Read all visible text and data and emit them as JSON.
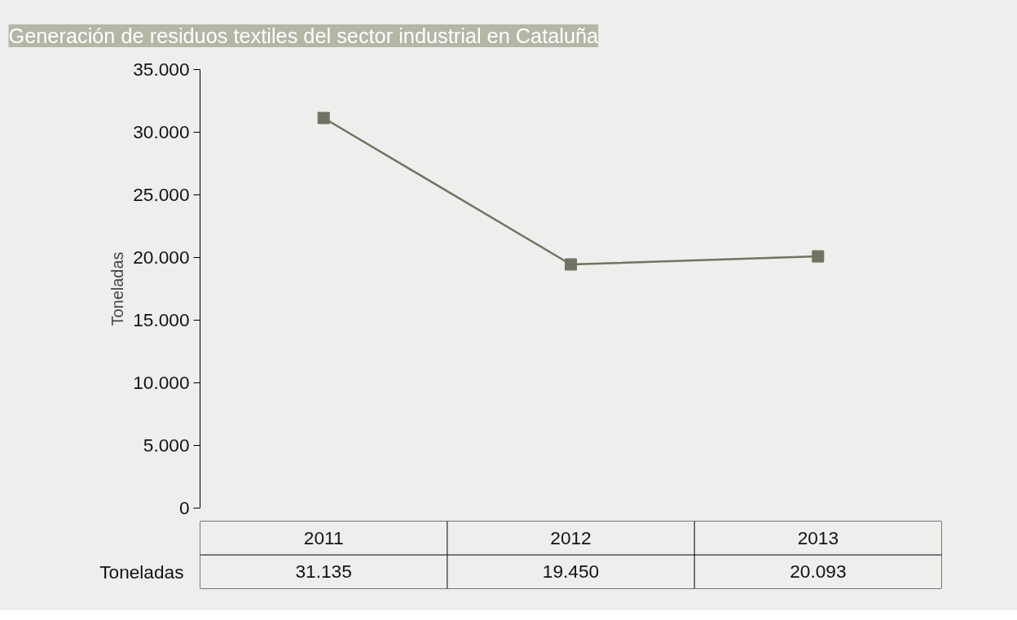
{
  "chart_data": {
    "type": "line",
    "title": "Generación de residuos textiles del sector industrial en Cataluña",
    "ylabel": "Toneladas",
    "categories": [
      "2011",
      "2012",
      "2013"
    ],
    "series": [
      {
        "name": "Toneladas",
        "color": "#6e7461",
        "values": [
          31135,
          19450,
          20093
        ],
        "value_labels": [
          "31.135",
          "19.450",
          "20.093"
        ]
      }
    ],
    "marker": "square",
    "grid": false,
    "ylim": [
      0,
      35000
    ],
    "yticks": [
      0,
      {
        "value": 5000,
        "label": "5.000"
      },
      {
        "value": 10000,
        "label": "10.000"
      },
      {
        "value": 15000,
        "label": "15.000"
      },
      {
        "value": 20000,
        "label": "20.000"
      },
      {
        "value": 25000,
        "label": "25.000"
      },
      {
        "value": 30000,
        "label": "30.000"
      },
      {
        "value": 35000,
        "label": "35.000"
      }
    ]
  }
}
